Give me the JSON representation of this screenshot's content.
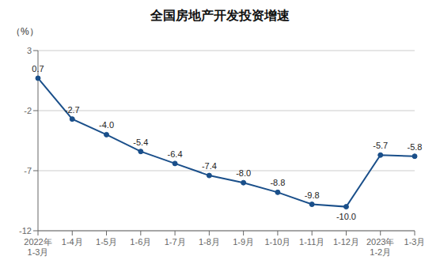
{
  "chart_data": {
    "type": "line",
    "title": "全国房地产开发投资增速",
    "ylabel": "（%）",
    "categories": [
      "2022年\n1-3月",
      "1-4月",
      "1-5月",
      "1-6月",
      "1-7月",
      "1-8月",
      "1-9月",
      "1-10月",
      "1-11月",
      "1-12月",
      "2023年\n1-2月",
      "1-3月"
    ],
    "values": [
      0.7,
      -2.7,
      -4.0,
      -5.4,
      -6.4,
      -7.4,
      -8.0,
      -8.8,
      -9.8,
      -10.0,
      -5.7,
      -5.8
    ],
    "value_labels": [
      "0.7",
      "-2.7",
      "-4.0",
      "-5.4",
      "-6.4",
      "-7.4",
      "-8.0",
      "-8.8",
      "-9.8",
      "-10.0",
      "-5.7",
      "-5.8"
    ],
    "color": "#1A4F8A",
    "marker": "circle",
    "ylim": [
      -12,
      3
    ],
    "yticks": [
      3,
      -2,
      -7,
      -12
    ],
    "grid": true,
    "data_labels": true
  }
}
